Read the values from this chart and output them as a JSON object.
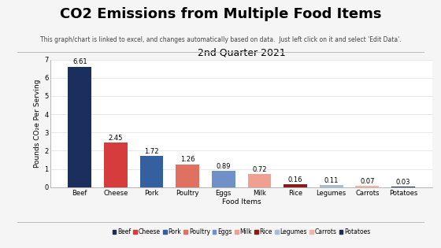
{
  "title": "CO2 Emissions from Multiple Food Items",
  "subtitle": "This graph/chart is linked to excel, and changes automatically based on data.  Just left click on it and select 'Edit Data'.",
  "chart_title": "2nd Quarter 2021",
  "categories": [
    "Beef",
    "Cheese",
    "Pork",
    "Poultry",
    "Eggs",
    "Milk",
    "Rice",
    "Legumes",
    "Carrots",
    "Potatoes"
  ],
  "values": [
    6.61,
    2.45,
    1.72,
    1.26,
    0.89,
    0.72,
    0.16,
    0.11,
    0.07,
    0.03
  ],
  "bar_colors": [
    "#1b2f5e",
    "#d63c3c",
    "#3460a0",
    "#e07060",
    "#7090c8",
    "#f0a090",
    "#8b1a1a",
    "#a8bcd8",
    "#f0b8a0",
    "#1b2f5e"
  ],
  "xlabel": "Food Items",
  "ylabel": "Pounds CO₂e Per Serving",
  "ylim": [
    0,
    7
  ],
  "yticks": [
    0,
    1,
    2,
    3,
    4,
    5,
    6,
    7
  ],
  "background_color": "#f5f5f5",
  "chart_bg_color": "#ffffff",
  "title_fontsize": 13,
  "subtitle_fontsize": 5.5,
  "chart_title_fontsize": 9,
  "axis_label_fontsize": 6.5,
  "tick_fontsize": 6,
  "value_label_fontsize": 6,
  "legend_fontsize": 5.5
}
